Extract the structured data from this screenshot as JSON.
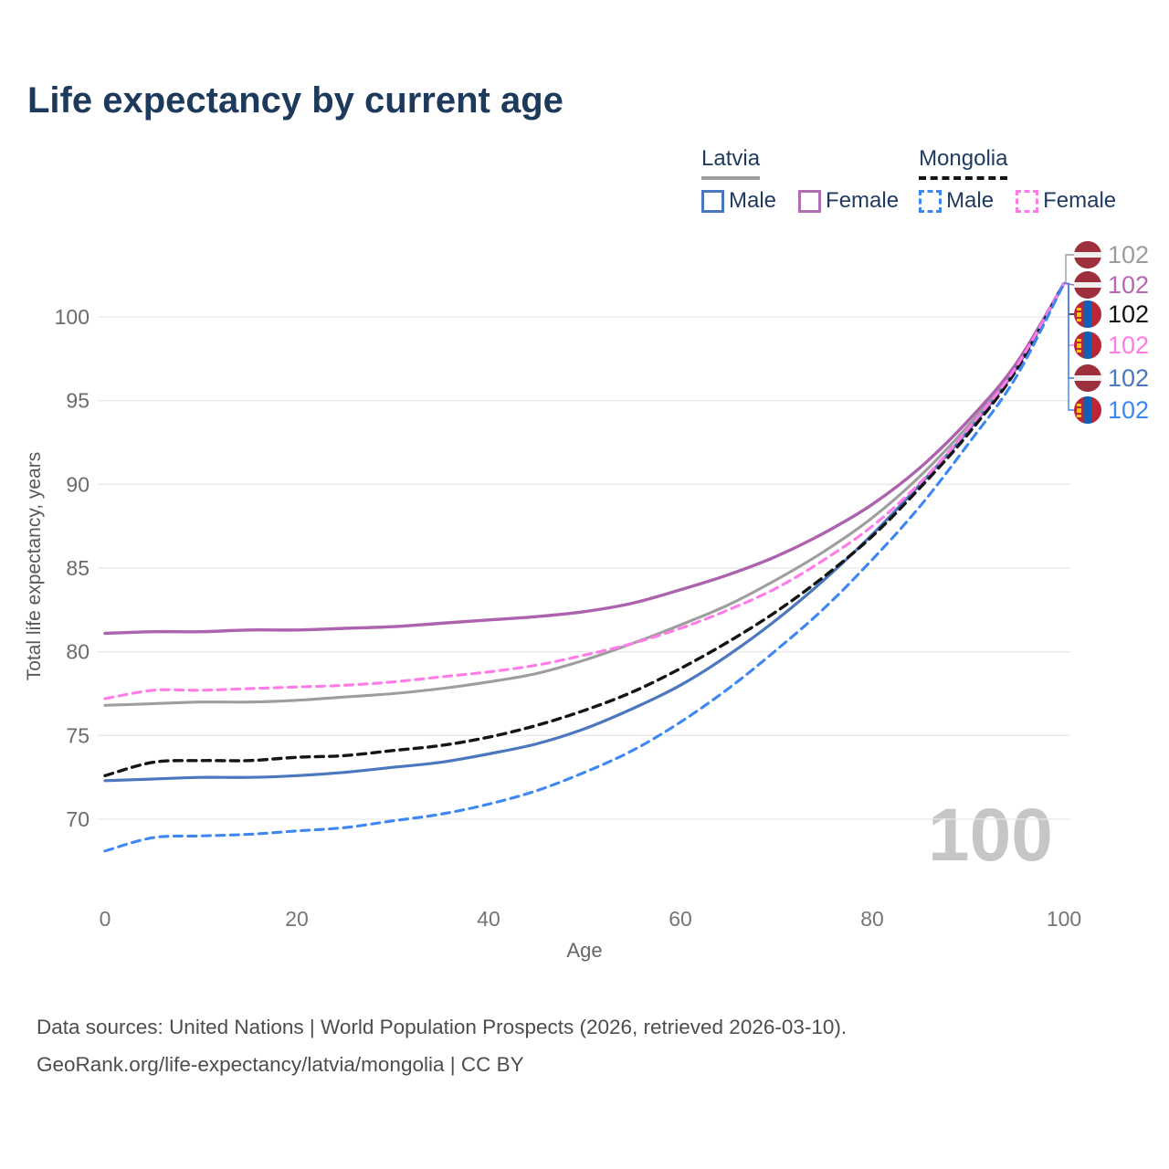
{
  "title": "Life expectancy by current age",
  "watermark": "100",
  "legend": {
    "groups": [
      {
        "country": "Latvia",
        "line_style": "solid",
        "underline_color": "#9e9e9e",
        "items": [
          {
            "label": "Male",
            "color": "#4a77bd",
            "dashed": false
          },
          {
            "label": "Female",
            "color": "#b06fb0",
            "dashed": false
          }
        ]
      },
      {
        "country": "Mongolia",
        "line_style": "dashed",
        "underline_color": "#141414",
        "items": [
          {
            "label": "Male",
            "color": "#3d87f5",
            "dashed": true
          },
          {
            "label": "Female",
            "color": "#ff7be8",
            "dashed": true
          }
        ]
      }
    ]
  },
  "axes": {
    "x": {
      "label": "Age",
      "ticks": [
        0,
        20,
        40,
        60,
        80,
        100
      ]
    },
    "y": {
      "label": "Total life expectancy, years",
      "ticks": [
        70,
        75,
        80,
        85,
        90,
        95,
        100
      ]
    }
  },
  "end_labels": [
    {
      "flag": "latvia",
      "value": "102",
      "color": "#9c9c9c",
      "series": "Latvia — All"
    },
    {
      "flag": "latvia",
      "value": "102",
      "color": "#b468b4",
      "series": "Latvia — Female"
    },
    {
      "flag": "mongolia",
      "value": "102",
      "color": "#111111",
      "series": "Mongolia — All"
    },
    {
      "flag": "mongolia",
      "value": "102",
      "color": "#ff7be8",
      "series": "Mongolia — Female"
    },
    {
      "flag": "latvia",
      "value": "102",
      "color": "#4a77bd",
      "series": "Latvia — Male"
    },
    {
      "flag": "mongolia",
      "value": "102",
      "color": "#3d87f5",
      "series": "Mongolia — Male"
    }
  ],
  "footer": {
    "line1": "Data sources: United Nations | World Population Prospects (2026, retrieved 2026-03-10).",
    "line2": "GeoRank.org/life-expectancy/latvia/mongolia | CC BY"
  },
  "chart_data": {
    "type": "line",
    "title": "Life expectancy by current age",
    "xlabel": "Age",
    "ylabel": "Total life expectancy, years",
    "x_ticks": [
      0,
      20,
      40,
      60,
      80,
      100
    ],
    "y_ticks": [
      70,
      75,
      80,
      85,
      90,
      95,
      100
    ],
    "xlim": [
      0,
      100
    ],
    "ylim": [
      67.5,
      103
    ],
    "grid": "horizontal",
    "legend_position": "top-right",
    "ages": [
      0,
      5,
      10,
      15,
      20,
      25,
      30,
      35,
      40,
      45,
      50,
      55,
      60,
      65,
      70,
      75,
      80,
      85,
      90,
      95,
      100
    ],
    "series": [
      {
        "name": "Latvia — All",
        "country": "Latvia",
        "color": "#9e9e9e",
        "dash": "solid",
        "width": 3.1,
        "end_value": 102,
        "values": [
          76.8,
          76.9,
          77.0,
          77.0,
          77.1,
          77.3,
          77.5,
          77.8,
          78.2,
          78.7,
          79.5,
          80.5,
          81.6,
          82.8,
          84.3,
          86.0,
          88.0,
          90.5,
          93.5,
          97.1,
          102
        ]
      },
      {
        "name": "Latvia — Female",
        "country": "Latvia",
        "color": "#ad62ad",
        "dash": "solid",
        "width": 3.4,
        "end_value": 102,
        "values": [
          81.1,
          81.2,
          81.2,
          81.3,
          81.3,
          81.4,
          81.5,
          81.7,
          81.9,
          82.1,
          82.4,
          82.9,
          83.7,
          84.6,
          85.7,
          87.1,
          88.8,
          91.0,
          93.8,
          97.2,
          102
        ]
      },
      {
        "name": "Latvia — Male",
        "country": "Latvia",
        "color": "#4a77bd",
        "dash": "solid",
        "width": 3.2,
        "end_value": 102,
        "values": [
          72.3,
          72.4,
          72.5,
          72.5,
          72.6,
          72.8,
          73.1,
          73.4,
          73.9,
          74.5,
          75.4,
          76.6,
          78.0,
          79.8,
          81.9,
          84.3,
          87.0,
          90.0,
          93.2,
          96.9,
          102
        ]
      },
      {
        "name": "Mongolia — All",
        "country": "Mongolia",
        "color": "#151515",
        "dash": "dashed",
        "width": 3.4,
        "end_value": 102,
        "values": [
          72.6,
          73.4,
          73.5,
          73.5,
          73.7,
          73.8,
          74.1,
          74.4,
          74.9,
          75.6,
          76.5,
          77.6,
          79.0,
          80.6,
          82.4,
          84.5,
          86.9,
          89.8,
          93.0,
          96.8,
          102
        ]
      },
      {
        "name": "Mongolia — Female",
        "country": "Mongolia",
        "color": "#ff7be8",
        "dash": "dashed",
        "width": 3.1,
        "end_value": 102,
        "values": [
          77.2,
          77.7,
          77.7,
          77.8,
          77.9,
          78.0,
          78.2,
          78.5,
          78.8,
          79.2,
          79.8,
          80.5,
          81.4,
          82.5,
          83.8,
          85.5,
          87.5,
          90.1,
          93.3,
          97.0,
          102
        ]
      },
      {
        "name": "Mongolia — Male",
        "country": "Mongolia",
        "color": "#3d87f5",
        "dash": "dashed",
        "width": 3.1,
        "end_value": 102,
        "values": [
          68.1,
          68.9,
          69.0,
          69.1,
          69.3,
          69.5,
          69.9,
          70.3,
          70.9,
          71.7,
          72.8,
          74.1,
          75.8,
          77.8,
          80.1,
          82.6,
          85.5,
          88.7,
          92.4,
          96.4,
          102
        ]
      }
    ]
  }
}
